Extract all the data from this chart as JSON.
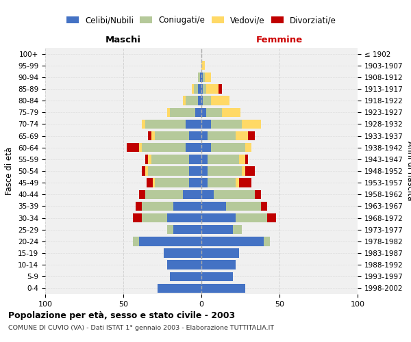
{
  "age_groups": [
    "0-4",
    "5-9",
    "10-14",
    "15-19",
    "20-24",
    "25-29",
    "30-34",
    "35-39",
    "40-44",
    "45-49",
    "50-54",
    "55-59",
    "60-64",
    "65-69",
    "70-74",
    "75-79",
    "80-84",
    "85-89",
    "90-94",
    "95-99",
    "100+"
  ],
  "birth_years": [
    "1998-2002",
    "1993-1997",
    "1988-1992",
    "1983-1987",
    "1978-1982",
    "1973-1977",
    "1968-1972",
    "1963-1967",
    "1958-1962",
    "1953-1957",
    "1948-1952",
    "1943-1947",
    "1938-1942",
    "1933-1937",
    "1928-1932",
    "1923-1927",
    "1918-1922",
    "1913-1917",
    "1908-1912",
    "1903-1907",
    "≤ 1902"
  ],
  "males": {
    "celibi": [
      28,
      20,
      22,
      24,
      40,
      18,
      22,
      18,
      12,
      8,
      8,
      8,
      10,
      8,
      10,
      4,
      2,
      2,
      1,
      0,
      0
    ],
    "coniugati": [
      0,
      0,
      0,
      0,
      4,
      4,
      16,
      20,
      24,
      22,
      26,
      24,
      28,
      22,
      26,
      16,
      8,
      3,
      1,
      0,
      0
    ],
    "vedovi": [
      0,
      0,
      0,
      0,
      0,
      0,
      0,
      0,
      0,
      1,
      2,
      2,
      2,
      2,
      2,
      2,
      2,
      1,
      0,
      0,
      0
    ],
    "divorziati": [
      0,
      0,
      0,
      0,
      0,
      0,
      6,
      4,
      4,
      4,
      2,
      2,
      8,
      2,
      0,
      0,
      0,
      0,
      0,
      0,
      0
    ]
  },
  "females": {
    "nubili": [
      28,
      20,
      22,
      24,
      40,
      20,
      22,
      16,
      8,
      4,
      4,
      4,
      6,
      4,
      6,
      3,
      1,
      1,
      1,
      0,
      0
    ],
    "coniugate": [
      0,
      0,
      0,
      0,
      4,
      6,
      20,
      22,
      26,
      18,
      22,
      20,
      22,
      18,
      20,
      10,
      5,
      2,
      1,
      0,
      0
    ],
    "vedove": [
      0,
      0,
      0,
      0,
      0,
      0,
      0,
      0,
      0,
      2,
      2,
      4,
      4,
      8,
      12,
      12,
      12,
      8,
      4,
      2,
      0
    ],
    "divorziate": [
      0,
      0,
      0,
      0,
      0,
      0,
      6,
      4,
      4,
      8,
      6,
      2,
      0,
      4,
      0,
      0,
      0,
      2,
      0,
      0,
      0
    ]
  },
  "colors": {
    "celibi": "#4472c4",
    "coniugati": "#b5c99a",
    "vedovi": "#ffd966",
    "divorziati": "#c00000"
  },
  "xlim": 100,
  "title_main": "Popolazione per età, sesso e stato civile - 2003",
  "title_sub": "COMUNE DI CUVIO (VA) - Dati ISTAT 1° gennaio 2003 - Elaborazione TUTTITALIA.IT",
  "ylabel_left": "Fasce di età",
  "ylabel_right": "Anni di nascita",
  "header_left": "Maschi",
  "header_right": "Femmine",
  "legend_labels": [
    "Celibi/Nubili",
    "Coniugati/e",
    "Vedovi/e",
    "Divorziati/e"
  ]
}
